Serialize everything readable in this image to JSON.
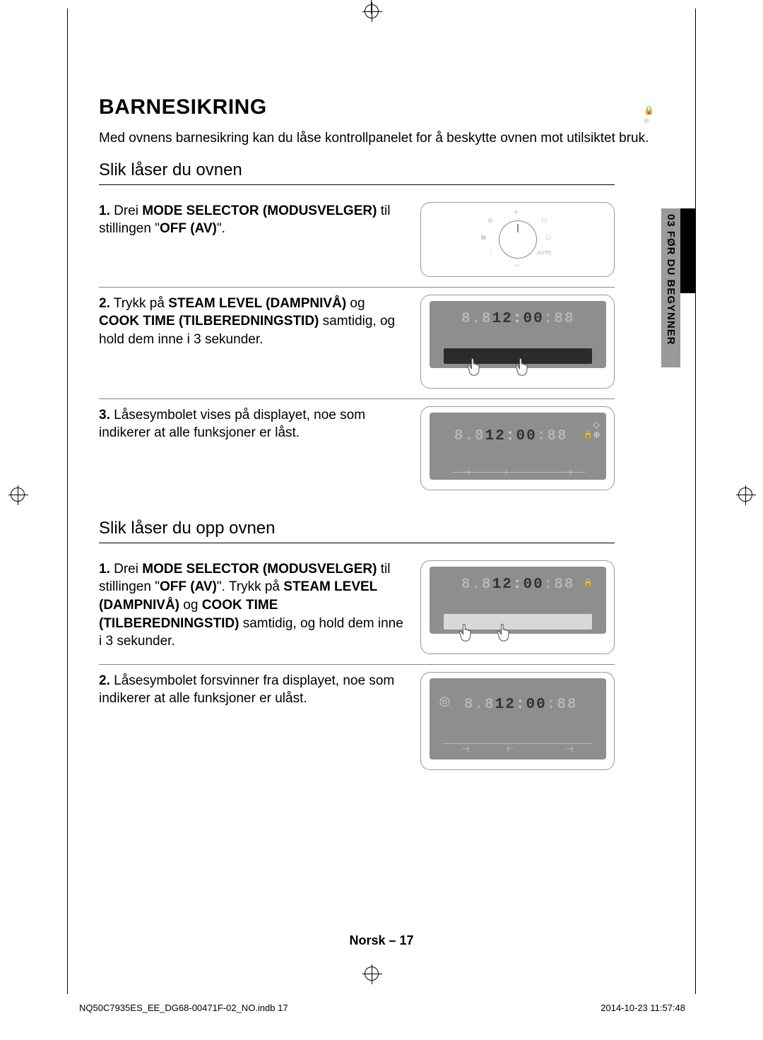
{
  "title": "BARNESIKRING",
  "intro": "Med ovnens barnesikring kan du låse kontrollpanelet for å beskytte ovnen mot utilsiktet bruk.",
  "sideTab": "03  FØR DU BEGYNNER",
  "lock": {
    "heading": "Slik låser du ovnen",
    "steps": [
      {
        "num": "1.",
        "parts": [
          {
            "t": "Drei ",
            "b": false
          },
          {
            "t": "MODE SELECTOR (MODUSVELGER)",
            "b": true
          },
          {
            "t": " til stillingen \"",
            "b": false
          },
          {
            "t": "OFF (AV)",
            "b": true
          },
          {
            "t": "\".",
            "b": false
          }
        ],
        "img": "dial"
      },
      {
        "num": "2.",
        "parts": [
          {
            "t": "Trykk på ",
            "b": false
          },
          {
            "t": "STEAM LEVEL (DAMPNIVÅ)",
            "b": true
          },
          {
            "t": " og ",
            "b": false
          },
          {
            "t": "COOK TIME (TILBEREDNINGSTID)",
            "b": true
          },
          {
            "t": " samtidig, og hold dem inne i 3 sekunder.",
            "b": false
          }
        ],
        "img": "panel-hands-dark"
      },
      {
        "num": "3.",
        "parts": [
          {
            "t": "Låsesymbolet vises på displayet, noe som indikerer at alle funksjoner er låst.",
            "b": false
          }
        ],
        "img": "panel-plain"
      }
    ]
  },
  "unlock": {
    "heading": "Slik låser du opp ovnen",
    "steps": [
      {
        "num": "1.",
        "parts": [
          {
            "t": "Drei ",
            "b": false
          },
          {
            "t": "MODE SELECTOR (MODUSVELGER)",
            "b": true
          },
          {
            "t": " til stillingen \"",
            "b": false
          },
          {
            "t": "OFF (AV)",
            "b": true
          },
          {
            "t": "\". Trykk på ",
            "b": false
          },
          {
            "t": "STEAM LEVEL (DAMPNIVÅ)",
            "b": true
          },
          {
            "t": " og ",
            "b": false
          },
          {
            "t": "COOK TIME (TILBEREDNINGSTID)",
            "b": true
          },
          {
            "t": " samtidig, og hold dem inne i 3 sekunder.",
            "b": false
          }
        ],
        "img": "panel-hands-light"
      },
      {
        "num": "2.",
        "parts": [
          {
            "t": "Låsesymbolet forsvinner fra displayet, noe som indikerer at alle funksjoner er ulåst.",
            "b": false
          }
        ],
        "img": "panel-xtall"
      }
    ]
  },
  "displayTime": {
    "pre": "8.8",
    "mid": "12",
    "sep": ":",
    "post": "00",
    "suf": ":88"
  },
  "footer": {
    "center": "Norsk – 17",
    "file": "NQ50C7935ES_EE_DG68-00471F-02_NO.indb   17",
    "date": "2014-10-23   11:57:48"
  },
  "colors": {
    "panelGrey": "#8e8e8e",
    "lightGrey": "#d8d8d8",
    "darkStrip": "#2b2b2b",
    "sideTab": "#9a9a9a"
  }
}
